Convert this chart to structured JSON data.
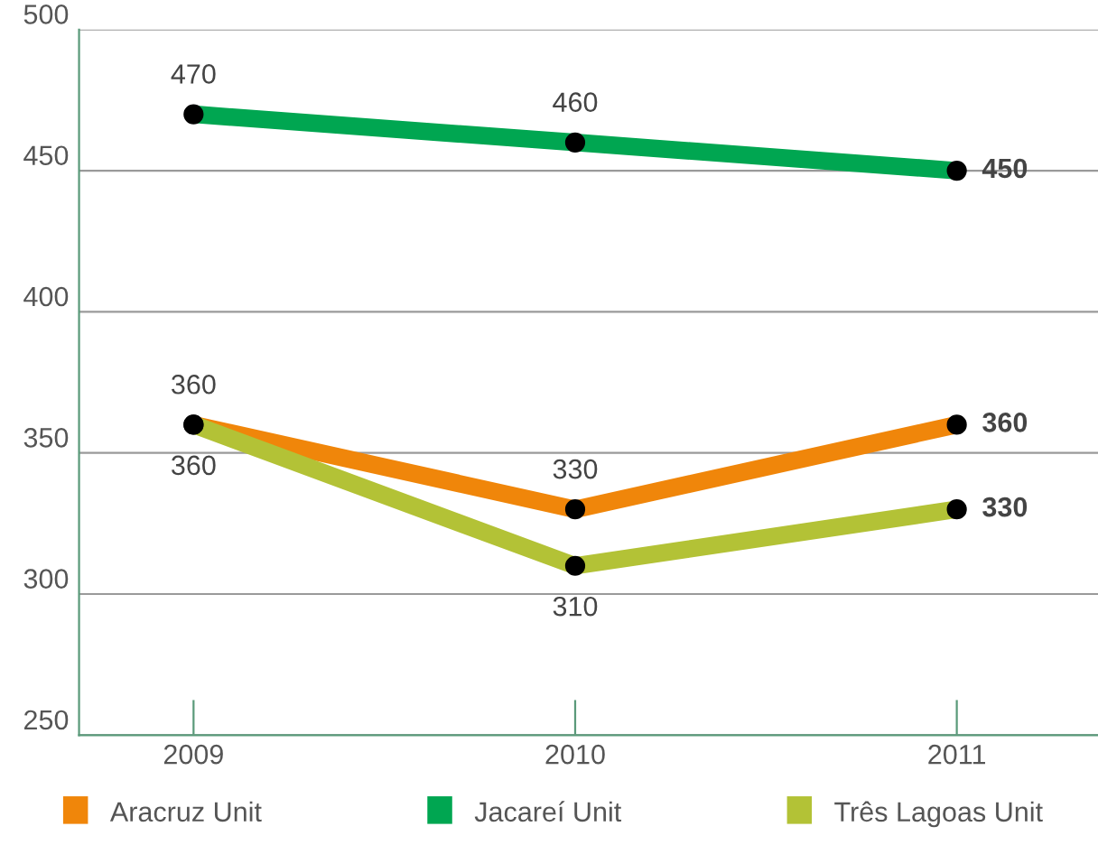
{
  "chart_data": {
    "type": "line",
    "categories": [
      "2009",
      "2010",
      "2011"
    ],
    "series": [
      {
        "name": "Aracruz Unit",
        "color": "#f0860a",
        "values": [
          360,
          330,
          360
        ]
      },
      {
        "name": "Jacareí Unit",
        "color": "#00a651",
        "values": [
          470,
          460,
          450
        ]
      },
      {
        "name": "Três Lagoas Unit",
        "color": "#b3c236",
        "values": [
          360,
          310,
          330
        ]
      }
    ],
    "ylim": [
      250,
      500
    ],
    "yticks": [
      250,
      300,
      350,
      400,
      450,
      500
    ],
    "grid": "y",
    "legend": "bottom",
    "marker": "circle",
    "line_style": "solid",
    "data_labels": true
  }
}
